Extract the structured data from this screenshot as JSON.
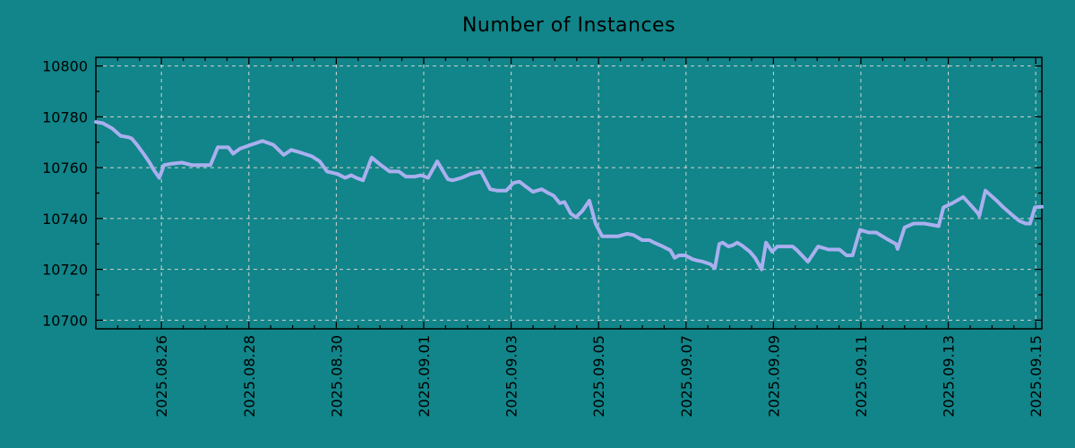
{
  "colors": {
    "background": "#118589",
    "line": "#AAAFEF",
    "grid": "#D2D2D2",
    "axis": "#000000",
    "text": "#000000"
  },
  "chart_data": {
    "type": "line",
    "title": "Number of Instances",
    "xlabel": "",
    "ylabel": "",
    "grid": "dashed major gridlines, mirrored inward ticks on all four borders",
    "legend": "none",
    "y_ticks": [
      10700,
      10720,
      10740,
      10760,
      10780,
      10800
    ],
    "y_minor_step": 10,
    "ylim": [
      10696.6,
      10803.4
    ],
    "x_range_days": [
      0,
      21.64
    ],
    "x_minor_step_days": 0.5,
    "x_ticks": {
      "positions_days": [
        1.5,
        3.5,
        5.5,
        7.5,
        9.5,
        11.5,
        13.5,
        15.5,
        17.5,
        19.5,
        21.5
      ],
      "labels": [
        "2025.08.26",
        "2025.08.28",
        "2025.08.30",
        "2025.09.01",
        "2025.09.03",
        "2025.09.05",
        "2025.09.07",
        "2025.09.09",
        "2025.09.11",
        "2025.09.13",
        "2025.09.15"
      ]
    },
    "series": [
      {
        "name": "instances",
        "color": "#AAAFEF",
        "points": [
          [
            0,
            10778
          ],
          [
            0.16,
            10777.5
          ],
          [
            0.37,
            10775.5
          ],
          [
            0.57,
            10772.5
          ],
          [
            0.74,
            10772
          ],
          [
            0.82,
            10771.5
          ],
          [
            0.94,
            10769
          ],
          [
            1.09,
            10765.5
          ],
          [
            1.23,
            10762
          ],
          [
            1.33,
            10759
          ],
          [
            1.45,
            10756
          ],
          [
            1.56,
            10761
          ],
          [
            1.7,
            10761.5
          ],
          [
            1.97,
            10762
          ],
          [
            2.21,
            10761
          ],
          [
            2.42,
            10761
          ],
          [
            2.62,
            10761
          ],
          [
            2.79,
            10768
          ],
          [
            3.03,
            10768
          ],
          [
            3.14,
            10765.5
          ],
          [
            3.3,
            10767.5
          ],
          [
            3.55,
            10769
          ],
          [
            3.81,
            10770.5
          ],
          [
            4.06,
            10769
          ],
          [
            4.3,
            10765
          ],
          [
            4.47,
            10767
          ],
          [
            4.67,
            10766
          ],
          [
            4.94,
            10764.5
          ],
          [
            5.12,
            10762.5
          ],
          [
            5.29,
            10758.5
          ],
          [
            5.53,
            10757.5
          ],
          [
            5.7,
            10756
          ],
          [
            5.84,
            10757
          ],
          [
            5.96,
            10756
          ],
          [
            6.11,
            10755
          ],
          [
            6.31,
            10764
          ],
          [
            6.52,
            10761
          ],
          [
            6.72,
            10758.5
          ],
          [
            6.93,
            10758.5
          ],
          [
            7.09,
            10756.5
          ],
          [
            7.3,
            10756.5
          ],
          [
            7.44,
            10757
          ],
          [
            7.6,
            10756
          ],
          [
            7.81,
            10762.5
          ],
          [
            8.05,
            10755.5
          ],
          [
            8.16,
            10755
          ],
          [
            8.36,
            10756
          ],
          [
            8.57,
            10757.5
          ],
          [
            8.81,
            10758.5
          ],
          [
            9.02,
            10751.5
          ],
          [
            9.18,
            10751
          ],
          [
            9.39,
            10751
          ],
          [
            9.55,
            10754
          ],
          [
            9.69,
            10754.5
          ],
          [
            9.84,
            10752.5
          ],
          [
            10,
            10750.5
          ],
          [
            10.2,
            10751.5
          ],
          [
            10.35,
            10750
          ],
          [
            10.47,
            10749
          ],
          [
            10.61,
            10746
          ],
          [
            10.72,
            10746.5
          ],
          [
            10.86,
            10742
          ],
          [
            10.98,
            10740.5
          ],
          [
            11.13,
            10743
          ],
          [
            11.29,
            10747
          ],
          [
            11.43,
            10738
          ],
          [
            11.58,
            10733
          ],
          [
            11.74,
            10733
          ],
          [
            11.95,
            10733
          ],
          [
            12.15,
            10734
          ],
          [
            12.3,
            10733.5
          ],
          [
            12.5,
            10731.5
          ],
          [
            12.66,
            10731.5
          ],
          [
            12.77,
            10730.5
          ],
          [
            12.97,
            10729
          ],
          [
            13.14,
            10727.5
          ],
          [
            13.24,
            10724.5
          ],
          [
            13.34,
            10725.5
          ],
          [
            13.48,
            10725.5
          ],
          [
            13.65,
            10724
          ],
          [
            13.75,
            10723.5
          ],
          [
            13.89,
            10723
          ],
          [
            14.06,
            10722
          ],
          [
            14.16,
            10720.5
          ],
          [
            14.26,
            10730
          ],
          [
            14.34,
            10730.5
          ],
          [
            14.47,
            10729
          ],
          [
            14.57,
            10729.5
          ],
          [
            14.67,
            10730.5
          ],
          [
            14.77,
            10729.5
          ],
          [
            14.96,
            10727
          ],
          [
            15.08,
            10724.5
          ],
          [
            15.23,
            10720
          ],
          [
            15.33,
            10730.5
          ],
          [
            15.47,
            10727
          ],
          [
            15.59,
            10729
          ],
          [
            15.74,
            10729
          ],
          [
            15.94,
            10729
          ],
          [
            16.04,
            10727.5
          ],
          [
            16.29,
            10723
          ],
          [
            16.52,
            10729
          ],
          [
            16.76,
            10727.8
          ],
          [
            17.01,
            10727.8
          ],
          [
            17.17,
            10725.5
          ],
          [
            17.31,
            10725.5
          ],
          [
            17.48,
            10735.5
          ],
          [
            17.68,
            10734.5
          ],
          [
            17.85,
            10734.5
          ],
          [
            18.09,
            10732
          ],
          [
            18.3,
            10730
          ],
          [
            18.34,
            10728
          ],
          [
            18.5,
            10736.5
          ],
          [
            18.71,
            10738
          ],
          [
            18.95,
            10738
          ],
          [
            19.18,
            10737.3
          ],
          [
            19.28,
            10737
          ],
          [
            19.39,
            10744.4
          ],
          [
            19.59,
            10746
          ],
          [
            19.84,
            10748.5
          ],
          [
            20,
            10745.5
          ],
          [
            20.18,
            10742
          ],
          [
            20.21,
            10741
          ],
          [
            20.35,
            10751
          ],
          [
            20.59,
            10747.3
          ],
          [
            20.76,
            10744.4
          ],
          [
            20.96,
            10741.4
          ],
          [
            21.13,
            10739
          ],
          [
            21.27,
            10738
          ],
          [
            21.37,
            10738
          ],
          [
            21.48,
            10744.4
          ],
          [
            21.64,
            10744.6
          ]
        ]
      }
    ]
  }
}
